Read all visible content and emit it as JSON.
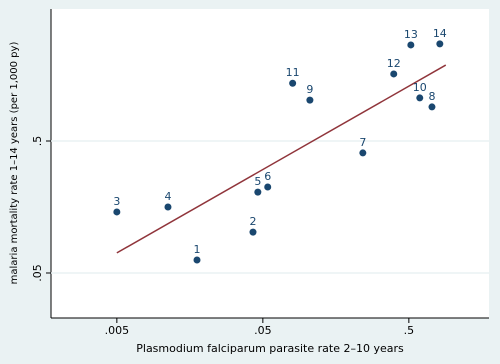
{
  "chart_data": {
    "type": "scatter",
    "x_label": "Plasmodium falciparum parasite rate 2–10 years",
    "y_label": "malaria mortality rate 1–14 years (per 1,000 py)",
    "xscale": "log",
    "yscale": "log",
    "xlim": [
      0.00177,
      1.77
    ],
    "ylim": [
      0.0228,
      5.0
    ],
    "xticks": [
      {
        "value": 0.005,
        "label": ".005"
      },
      {
        "value": 0.05,
        "label": ".05"
      },
      {
        "value": 0.5,
        "label": ".5"
      }
    ],
    "yticks": [
      {
        "value": 0.05,
        "label": ".05"
      },
      {
        "value": 0.5,
        "label": ".5"
      }
    ],
    "grid": true,
    "points": {
      "color": "#1a476f",
      "labels": [
        "1",
        "2",
        "3",
        "4",
        "5",
        "6",
        "7",
        "8",
        "9",
        "10",
        "11",
        "12",
        "13",
        "14"
      ],
      "x": [
        0.0177,
        0.0428,
        0.005,
        0.0112,
        0.0462,
        0.054,
        0.242,
        0.72,
        0.105,
        0.594,
        0.08,
        0.394,
        0.516,
        0.815
      ],
      "y": [
        0.0627,
        0.102,
        0.145,
        0.158,
        0.205,
        0.224,
        0.406,
        0.906,
        1.02,
        1.06,
        1.37,
        1.61,
        2.67,
        2.72
      ]
    },
    "fit_line": {
      "color": "#90353b",
      "x": [
        0.005,
        0.895
      ],
      "y": [
        0.071,
        1.88
      ]
    }
  }
}
